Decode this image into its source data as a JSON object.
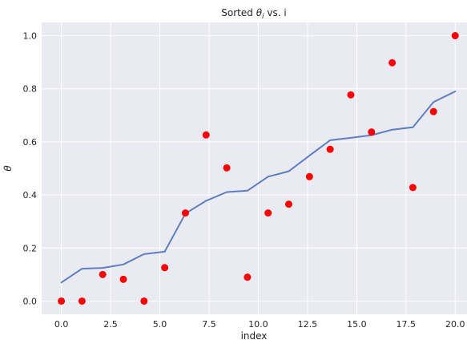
{
  "chart_data": {
    "type": "line",
    "title": "Sorted θᵢ vs. i",
    "title_parts": {
      "prefix": "Sorted ",
      "symbol": "θ",
      "subscript": "i",
      "suffix": " vs. i"
    },
    "xlabel": "index",
    "ylabel": "θ",
    "xlim": [
      -1.0,
      20.6
    ],
    "ylim": [
      -0.05,
      1.05
    ],
    "xticks": [
      0.0,
      2.5,
      5.0,
      7.5,
      10.0,
      12.5,
      15.0,
      17.5,
      20.0
    ],
    "xtick_labels": [
      "0.0",
      "2.5",
      "5.0",
      "7.5",
      "10.0",
      "12.5",
      "15.0",
      "17.5",
      "20.0"
    ],
    "yticks": [
      0.0,
      0.2,
      0.4,
      0.6,
      0.8,
      1.0
    ],
    "ytick_labels": [
      "0.0",
      "0.2",
      "0.4",
      "0.6",
      "0.8",
      "1.0"
    ],
    "grid": true,
    "background": "#eaeaf2",
    "line_color": "#5d7fbf",
    "marker_color": "#ff0000",
    "series": [
      {
        "kind": "line",
        "x": [
          0,
          1.05,
          2.1,
          3.15,
          4.2,
          5.25,
          6.3,
          7.35,
          8.4,
          9.45,
          10.5,
          11.55,
          12.6,
          13.65,
          14.7,
          15.75,
          16.8,
          17.85,
          18.9,
          20.0
        ],
        "values": [
          0.07,
          0.122,
          0.125,
          0.138,
          0.177,
          0.186,
          0.33,
          0.378,
          0.411,
          0.416,
          0.469,
          0.489,
          0.548,
          0.606,
          0.615,
          0.625,
          0.646,
          0.655,
          0.75,
          0.79
        ]
      },
      {
        "kind": "scatter",
        "x": [
          0,
          1.05,
          2.1,
          3.15,
          4.2,
          5.25,
          6.3,
          7.35,
          8.4,
          9.45,
          10.5,
          11.55,
          12.6,
          13.65,
          14.7,
          15.75,
          16.8,
          17.85,
          18.9,
          20.0
        ],
        "values": [
          0.0,
          0.0,
          0.1,
          0.082,
          0.0,
          0.126,
          0.332,
          0.626,
          0.502,
          0.09,
          0.332,
          0.365,
          0.469,
          0.572,
          0.777,
          0.637,
          0.898,
          0.428,
          0.714,
          1.0
        ]
      }
    ]
  }
}
